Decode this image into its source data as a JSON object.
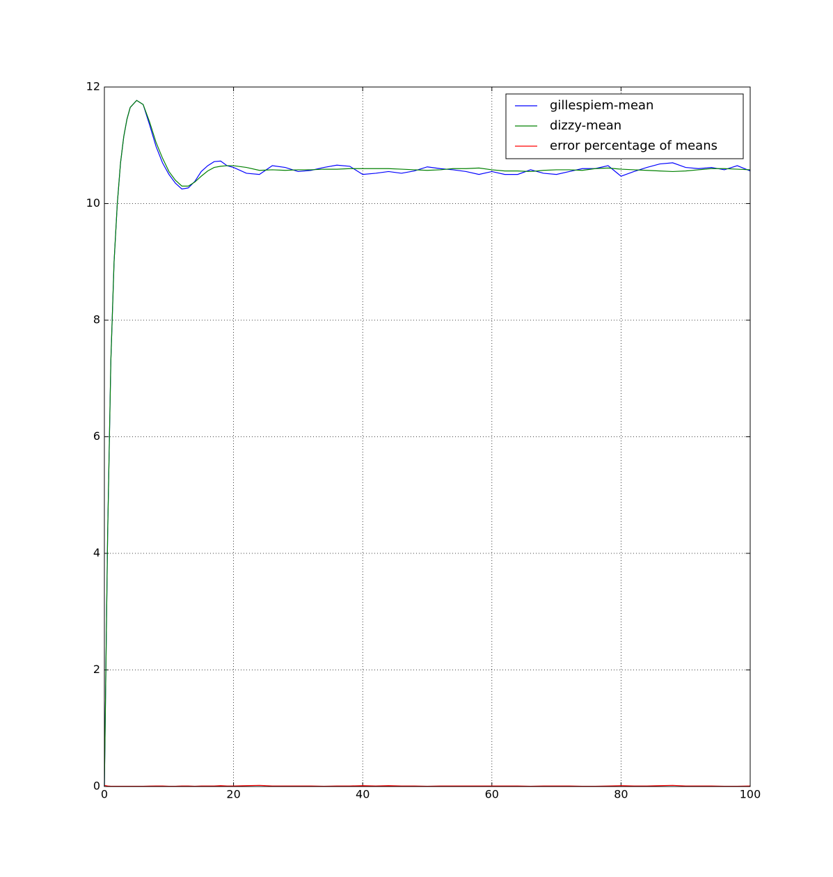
{
  "chart_data": {
    "type": "line",
    "x": [
      0,
      0.5,
      1,
      1.5,
      2,
      2.5,
      3,
      3.5,
      4,
      5,
      6,
      7,
      8,
      9,
      10,
      11,
      12,
      13,
      14,
      15,
      16,
      17,
      18,
      19,
      20,
      22,
      24,
      26,
      28,
      30,
      32,
      34,
      36,
      38,
      40,
      42,
      44,
      46,
      48,
      50,
      52,
      54,
      56,
      58,
      60,
      62,
      64,
      66,
      68,
      70,
      72,
      74,
      76,
      78,
      80,
      82,
      84,
      86,
      88,
      90,
      92,
      94,
      96,
      98,
      100
    ],
    "series": [
      {
        "name": "gillespiem-mean",
        "color": "#0000ff",
        "values": [
          0,
          4.3,
          7.3,
          9.0,
          10.0,
          10.7,
          11.15,
          11.45,
          11.65,
          11.77,
          11.7,
          11.35,
          10.98,
          10.7,
          10.5,
          10.35,
          10.25,
          10.27,
          10.38,
          10.55,
          10.65,
          10.72,
          10.73,
          10.65,
          10.62,
          10.52,
          10.5,
          10.65,
          10.62,
          10.55,
          10.57,
          10.62,
          10.66,
          10.64,
          10.5,
          10.52,
          10.55,
          10.52,
          10.56,
          10.63,
          10.6,
          10.58,
          10.55,
          10.5,
          10.55,
          10.5,
          10.5,
          10.58,
          10.52,
          10.5,
          10.55,
          10.6,
          10.6,
          10.65,
          10.47,
          10.55,
          10.62,
          10.68,
          10.7,
          10.62,
          10.6,
          10.62,
          10.58,
          10.65,
          10.56
        ]
      },
      {
        "name": "dizzy-mean",
        "color": "#008000",
        "values": [
          0,
          4.3,
          7.3,
          9.0,
          10.0,
          10.7,
          11.15,
          11.45,
          11.65,
          11.77,
          11.7,
          11.4,
          11.05,
          10.78,
          10.55,
          10.4,
          10.3,
          10.3,
          10.37,
          10.47,
          10.56,
          10.62,
          10.64,
          10.65,
          10.65,
          10.62,
          10.57,
          10.58,
          10.57,
          10.58,
          10.58,
          10.59,
          10.59,
          10.6,
          10.6,
          10.6,
          10.6,
          10.59,
          10.58,
          10.57,
          10.58,
          10.6,
          10.6,
          10.61,
          10.58,
          10.56,
          10.56,
          10.55,
          10.57,
          10.58,
          10.58,
          10.57,
          10.6,
          10.61,
          10.59,
          10.58,
          10.57,
          10.56,
          10.55,
          10.56,
          10.58,
          10.6,
          10.6,
          10.59,
          10.58
        ]
      },
      {
        "name": "error percentage of means",
        "color": "#ff0000",
        "values": [
          0.02,
          0.01,
          0.005,
          0.005,
          0.005,
          0.005,
          0.005,
          0.005,
          0.005,
          0.005,
          0.005,
          0.008,
          0.01,
          0.01,
          0.005,
          0.005,
          0.01,
          0.01,
          0.005,
          0.01,
          0.01,
          0.01,
          0.015,
          0.01,
          0.01,
          0.015,
          0.02,
          0.01,
          0.01,
          0.01,
          0.01,
          0.005,
          0.01,
          0.01,
          0.015,
          0.01,
          0.015,
          0.01,
          0.01,
          0.005,
          0.01,
          0.01,
          0.01,
          0.01,
          0.01,
          0.01,
          0.01,
          0.005,
          0.01,
          0.01,
          0.01,
          0.005,
          0.005,
          0.01,
          0.015,
          0.01,
          0.01,
          0.015,
          0.02,
          0.01,
          0.01,
          0.01,
          0.005,
          0.005,
          0.01
        ]
      }
    ],
    "xlim": [
      0,
      100
    ],
    "xticks": [
      0,
      20,
      40,
      60,
      80,
      100
    ],
    "ylim": [
      0,
      12
    ],
    "yticks": [
      0,
      2,
      4,
      6,
      8,
      10,
      12
    ],
    "grid": true,
    "legend": "upper right"
  }
}
